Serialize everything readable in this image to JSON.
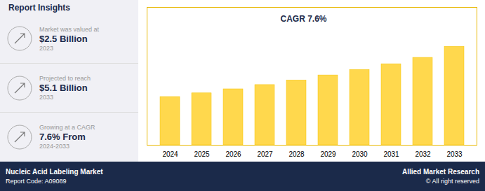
{
  "chart_data": {
    "type": "bar",
    "title": "Report Insights",
    "categories": [
      "2024",
      "2025",
      "2026",
      "2027",
      "2028",
      "2029",
      "2030",
      "2031",
      "2032",
      "2033"
    ],
    "values": [
      2.5,
      2.69,
      2.9,
      3.12,
      3.36,
      3.62,
      3.9,
      4.2,
      4.53,
      5.1
    ],
    "color": "#FFD84D",
    "ylim": [
      0,
      7.14
    ],
    "yticks": [],
    "tick_labels": "x",
    "grid": false,
    "annotations": [
      "CAGR 7.6%",
      "Market was valued at",
      "$2.5 Billion",
      "2023",
      "Projected to reach",
      "$5.1 Billion",
      "2033",
      "Growing at a CAGR",
      "7.6% From",
      "2024-2033",
      "Nucleic Acid Labeling Market",
      "Report Code: A09089",
      "Allied Market Research",
      "© All right reserved"
    ]
  }
}
